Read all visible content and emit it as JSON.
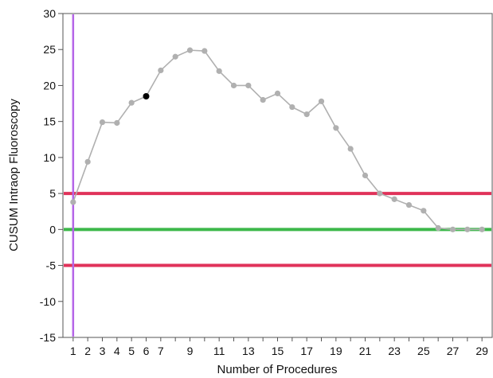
{
  "chart_data": {
    "type": "line",
    "title": "",
    "xlabel": "Number of Procedures",
    "ylabel": "CUSUM Intraop Fluoroscopy",
    "xlim": [
      0.3,
      29.7
    ],
    "ylim": [
      -15,
      30
    ],
    "x_ticks": [
      1,
      2,
      3,
      4,
      5,
      6,
      7,
      9,
      11,
      13,
      15,
      17,
      19,
      21,
      23,
      25,
      27,
      29
    ],
    "y_ticks": [
      -15,
      -10,
      -5,
      0,
      5,
      10,
      15,
      20,
      25,
      30
    ],
    "grid": false,
    "series": [
      {
        "x": [
          1,
          2,
          3,
          4,
          5,
          6,
          7,
          8,
          9,
          10,
          11,
          12,
          13,
          14,
          15,
          16,
          17,
          18,
          19,
          20,
          21,
          22,
          23,
          24,
          25,
          26,
          27,
          28,
          29
        ],
        "values": [
          3.8,
          9.4,
          14.9,
          14.8,
          17.6,
          18.5,
          22.1,
          24.0,
          24.9,
          24.8,
          22.0,
          20.0,
          20.0,
          18.0,
          18.9,
          17.0,
          16.0,
          17.8,
          14.1,
          11.2,
          7.5,
          5.0,
          4.2,
          3.4,
          2.6,
          0.2,
          0.0,
          0.0,
          0.0
        ],
        "color": "#b0b0b0",
        "highlight_x": 6,
        "highlight_color": "#000000"
      }
    ],
    "reference_lines": [
      {
        "y": 5,
        "color": "#e0325a"
      },
      {
        "y": 0,
        "color": "#3cb84a"
      },
      {
        "y": -5,
        "color": "#e0325a"
      }
    ],
    "vertical_line": {
      "x": 1,
      "color": "#b565e8"
    }
  }
}
